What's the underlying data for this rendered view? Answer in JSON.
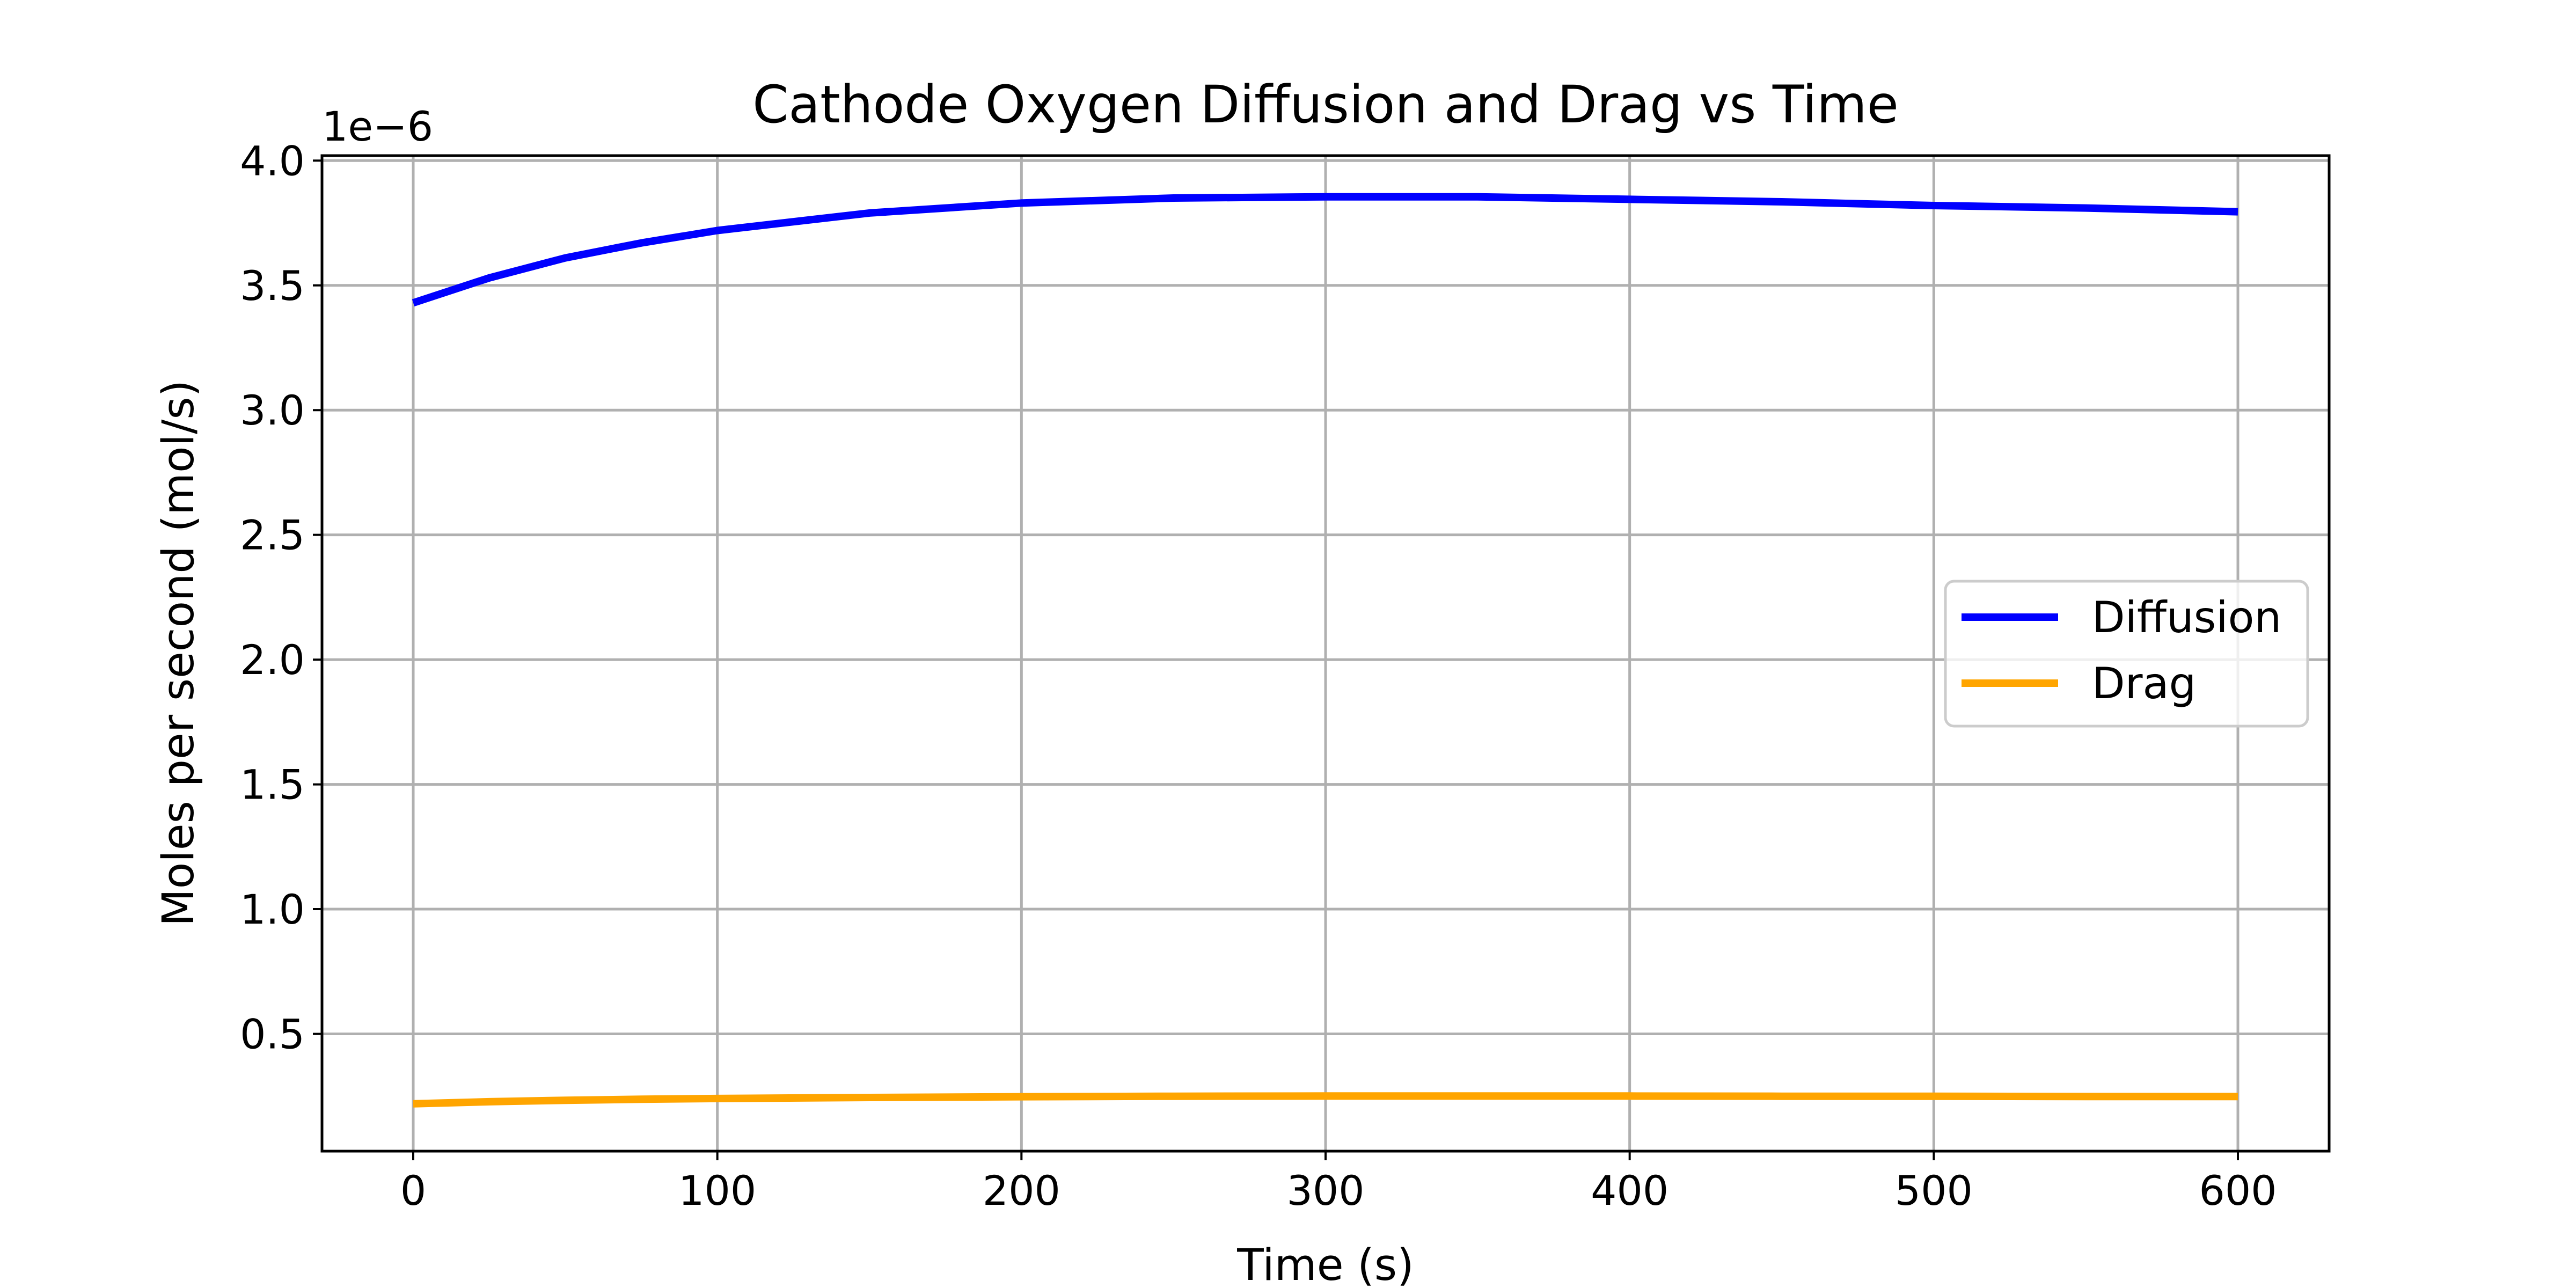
{
  "chart_data": {
    "type": "line",
    "title": "Cathode Oxygen Diffusion and Drag vs Time",
    "xlabel": "Time (s)",
    "ylabel": "Moles per second (mol/s)",
    "y_offset_label": "1e−6",
    "xlim": [
      -30,
      630
    ],
    "ylim": [
      0.03,
      4.02
    ],
    "x_ticks": [
      0,
      100,
      200,
      300,
      400,
      500,
      600
    ],
    "x_tick_labels": [
      "0",
      "100",
      "200",
      "300",
      "400",
      "500",
      "600"
    ],
    "y_ticks": [
      0.5,
      1.0,
      1.5,
      2.0,
      2.5,
      3.0,
      3.5,
      4.0
    ],
    "y_tick_labels": [
      "0.5",
      "1.0",
      "1.5",
      "2.0",
      "2.5",
      "3.0",
      "3.5",
      "4.0"
    ],
    "grid": true,
    "legend_position": "center-right",
    "x": [
      0,
      25,
      50,
      75,
      100,
      150,
      200,
      250,
      300,
      350,
      400,
      450,
      500,
      550,
      600
    ],
    "series": [
      {
        "name": "Diffusion",
        "color": "#0000ff",
        "values": [
          3.43,
          3.53,
          3.61,
          3.67,
          3.72,
          3.79,
          3.83,
          3.85,
          3.855,
          3.855,
          3.845,
          3.835,
          3.82,
          3.81,
          3.795
        ]
      },
      {
        "name": "Drag",
        "color": "#ffa500",
        "values": [
          0.22,
          0.228,
          0.234,
          0.238,
          0.241,
          0.245,
          0.248,
          0.25,
          0.251,
          0.251,
          0.251,
          0.25,
          0.25,
          0.249,
          0.249
        ]
      }
    ]
  }
}
